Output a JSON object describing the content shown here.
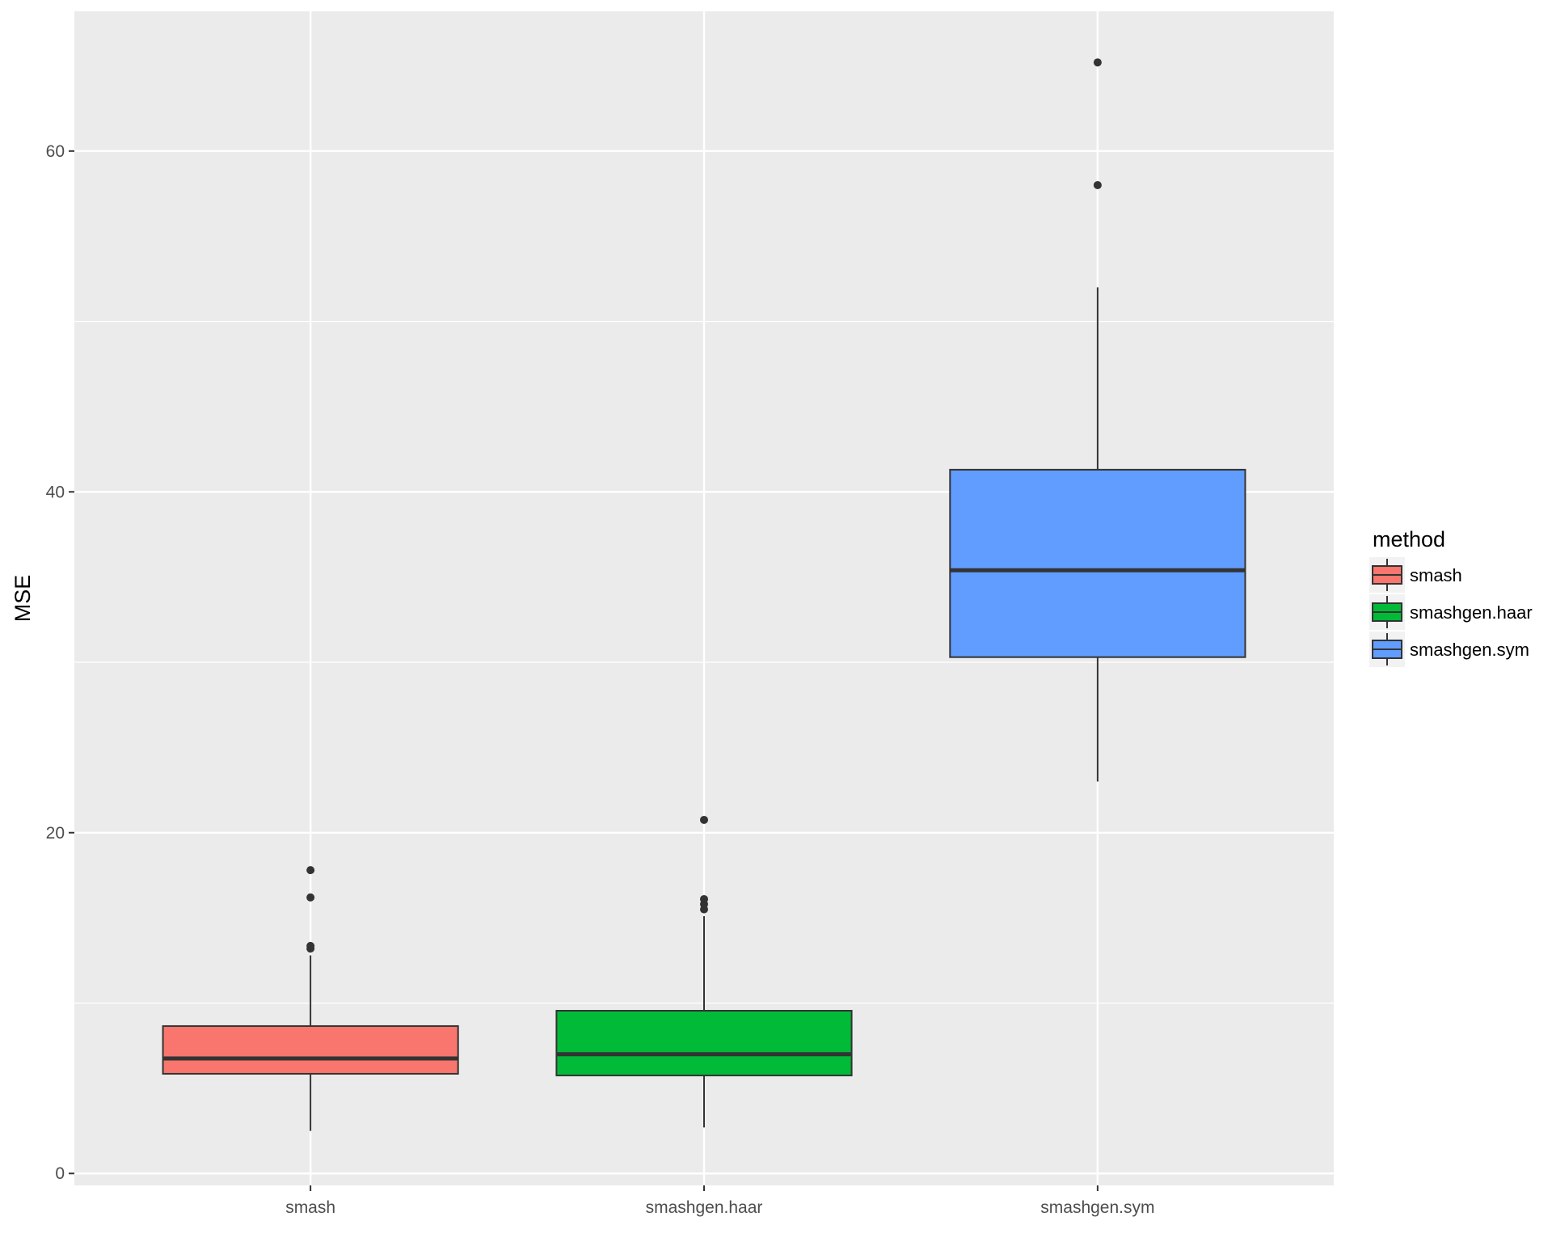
{
  "chart_data": {
    "type": "box",
    "title": "",
    "xlabel": "",
    "ylabel": "MSE",
    "ylim": [
      -0.7,
      68.2
    ],
    "yticks": [
      0,
      20,
      40,
      60
    ],
    "ytick_labels": [
      "0",
      "20",
      "40",
      "60"
    ],
    "grid": true,
    "categories": [
      "smash",
      "smashgen.haar",
      "smashgen.sym"
    ],
    "legend": {
      "title": "method",
      "position": "right",
      "entries": [
        "smash",
        "smashgen.haar",
        "smashgen.sym"
      ]
    },
    "series": [
      {
        "category": "smash",
        "color": "#F8766D",
        "whisker_low": 2.5,
        "q1": 5.85,
        "median": 6.75,
        "q3": 8.65,
        "whisker_high": 12.8,
        "outliers": [
          13.2,
          13.35,
          16.2,
          17.8
        ]
      },
      {
        "category": "smashgen.haar",
        "color": "#00BA38",
        "whisker_low": 2.7,
        "q1": 5.75,
        "median": 7.0,
        "q3": 9.55,
        "whisker_high": 15.1,
        "outliers": [
          15.5,
          15.8,
          16.1,
          20.75
        ]
      },
      {
        "category": "smashgen.sym",
        "color": "#619CFF",
        "whisker_low": 23.0,
        "q1": 30.3,
        "median": 35.4,
        "q3": 41.3,
        "whisker_high": 52.0,
        "outliers": [
          58.0,
          65.2
        ]
      }
    ]
  }
}
